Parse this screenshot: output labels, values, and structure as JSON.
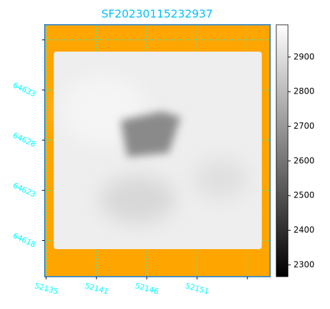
{
  "chart_data": {
    "type": "image",
    "title": "SF20230115232937",
    "xlim": [
      52135.26,
      52158.1
    ],
    "xticks": [
      {
        "value": 52135.4,
        "label": "52135"
      },
      {
        "value": 52140.5,
        "label": "52141"
      },
      {
        "value": 52145.6,
        "label": "52146"
      },
      {
        "value": 52150.7,
        "label": "52151"
      },
      {
        "value": 52155.8,
        "label": null
      }
    ],
    "ylim": [
      64614.4,
      64639.5
    ],
    "yticks": [
      {
        "value": 64638,
        "label": null
      },
      64633,
      64628,
      64623,
      64618
    ],
    "grid": true,
    "background": "#ffa500",
    "tick_color": "#00ffff",
    "title_color": "#00bfff",
    "colorbar": {
      "cmap": "gray",
      "lim": [
        2266,
        2993
      ],
      "ticks": [
        2300,
        2400,
        2500,
        2600,
        2700,
        2800,
        2900
      ]
    }
  }
}
